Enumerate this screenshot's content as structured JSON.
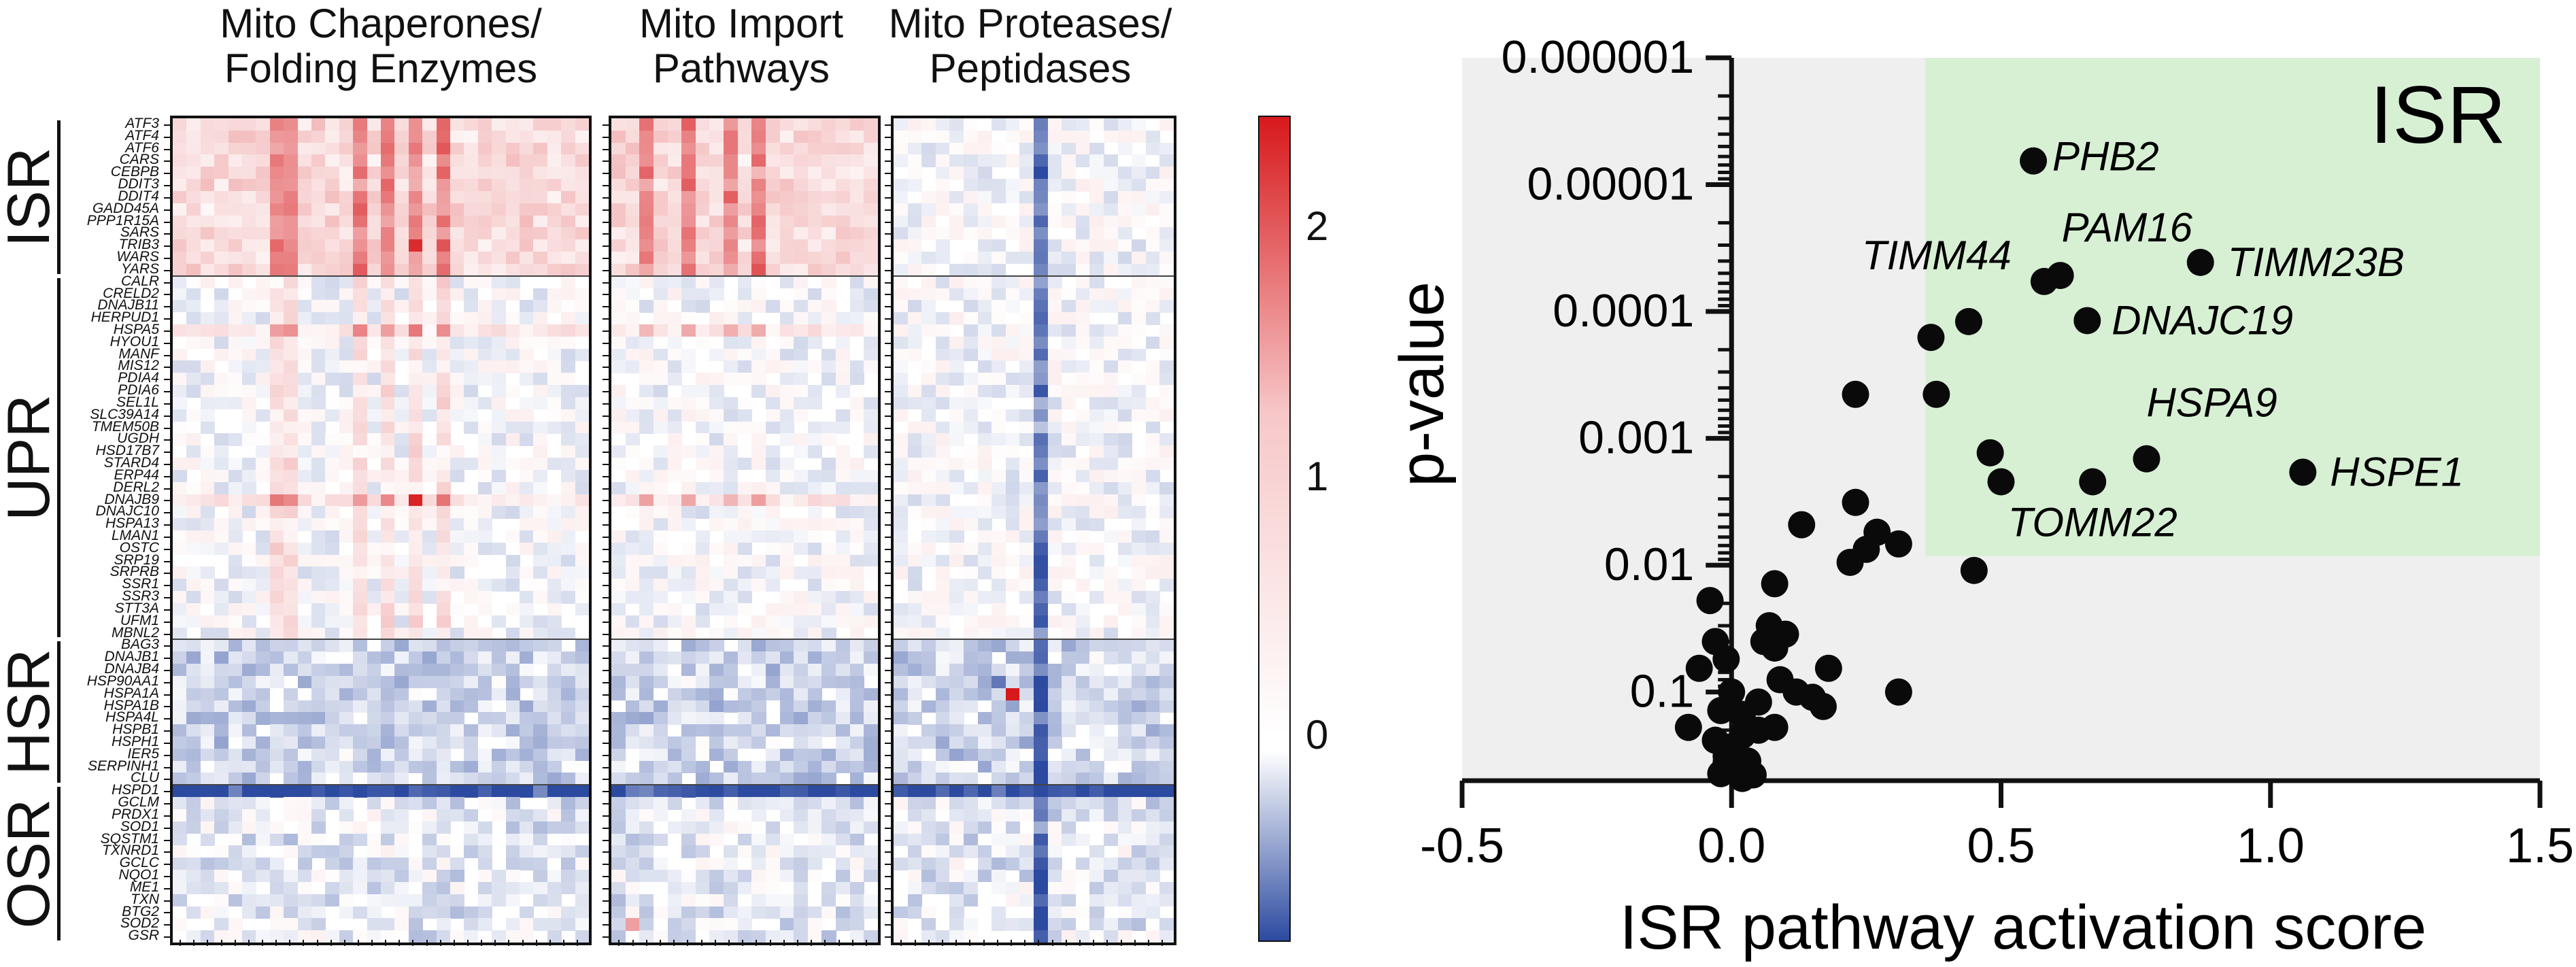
{
  "heatmap": {
    "panel_titles": [
      "Mito Chaperones/\nFolding Enzymes",
      "Mito Import\nPathways",
      "Mito Proteases/\nPeptidases"
    ],
    "groups": [
      {
        "name": "ISR",
        "genes": [
          "ATF3",
          "ATF4",
          "ATF6",
          "CARS",
          "CEBPB",
          "DDIT3",
          "DDIT4",
          "GADD45A",
          "PPP1R15A",
          "SARS",
          "TRIB3",
          "WARS",
          "YARS"
        ]
      },
      {
        "name": "UPR",
        "genes": [
          "CALR",
          "CRELD2",
          "DNAJB11",
          "HERPUD1",
          "HSPA5",
          "HYOU1",
          "MANF",
          "MIS12",
          "PDIA4",
          "PDIA6",
          "SEL1L",
          "SLC39A14",
          "TMEM50B",
          "UGDH",
          "HSD17B7",
          "STARD4",
          "ERP44",
          "DERL2",
          "DNAJB9",
          "DNAJC10",
          "HSPA13",
          "LMAN1",
          "OSTC",
          "SRP19",
          "SRPRB",
          "SSR1",
          "SSR3",
          "STT3A",
          "UFM1",
          "MBNL2"
        ]
      },
      {
        "name": "HSR",
        "genes": [
          "BAG3",
          "DNAJB1",
          "DNAJB4",
          "HSP90AA1",
          "HSPA1A",
          "HSPA1B",
          "HSPA4L",
          "HSPB1",
          "HSPH1",
          "IER5",
          "SERPINH1",
          "CLU"
        ]
      },
      {
        "name": "OSR",
        "genes": [
          "HSPD1",
          "GCLM",
          "PRDX1",
          "SOD1",
          "SQSTM1",
          "TXNRD1",
          "GCLC",
          "NQO1",
          "ME1",
          "TXN",
          "BTG2",
          "SOD2",
          "GSR"
        ]
      }
    ],
    "colorbar": {
      "ticks": [
        "2",
        "1",
        "0"
      ],
      "max": 2.4,
      "min": -0.8,
      "colors": {
        "high": "#d7191c",
        "mid": "#ffffff",
        "low": "#2c4aa0"
      }
    }
  },
  "chart_data": {
    "type": "scatter",
    "title": "",
    "xlabel": "ISR pathway activation score",
    "ylabel": "p-value",
    "xlim": [
      -0.5,
      1.5
    ],
    "xticks": [
      "-0.5",
      "0.0",
      "0.5",
      "1.0",
      "1.5"
    ],
    "y_scale": "log",
    "ylim": [
      1e-06,
      0.5
    ],
    "yticks": [
      "0.000001",
      "0.00001",
      "0.0001",
      "0.001",
      "0.01",
      "0.1"
    ],
    "highlight_label": "ISR",
    "colors": {
      "background": "#efefef",
      "highlight": "#d7f0d4",
      "point": "#0a0a0a"
    },
    "labeled_points": [
      {
        "label": "PHB2",
        "x": 0.56,
        "y": 6.5e-06
      },
      {
        "label": "PAM16",
        "x": 0.61,
        "y": 5.2e-05
      },
      {
        "label": "TIMM44",
        "x": 0.58,
        "y": 5.8e-05
      },
      {
        "label": "TIMM23B",
        "x": 0.87,
        "y": 4.1e-05
      },
      {
        "label": "DNAJC19",
        "x": 0.66,
        "y": 0.000118
      },
      {
        "label": "HSPA9",
        "x": 0.77,
        "y": 0.00145
      },
      {
        "label": "HSPE1",
        "x": 1.06,
        "y": 0.00185
      },
      {
        "label": "TOMM22",
        "x": 0.67,
        "y": 0.0022
      }
    ],
    "points": [
      {
        "x": 0.37,
        "y": 0.00016
      },
      {
        "x": 0.44,
        "y": 0.00012
      },
      {
        "x": 0.38,
        "y": 0.00045
      },
      {
        "x": 0.23,
        "y": 0.00045
      },
      {
        "x": 0.48,
        "y": 0.0013
      },
      {
        "x": 0.5,
        "y": 0.0022
      },
      {
        "x": 0.23,
        "y": 0.0032
      },
      {
        "x": 0.13,
        "y": 0.0048
      },
      {
        "x": 0.27,
        "y": 0.0055
      },
      {
        "x": 0.31,
        "y": 0.0068
      },
      {
        "x": 0.25,
        "y": 0.0075
      },
      {
        "x": 0.45,
        "y": 0.011
      },
      {
        "x": 0.22,
        "y": 0.0095
      },
      {
        "x": 0.08,
        "y": 0.014
      },
      {
        "x": -0.04,
        "y": 0.019
      },
      {
        "x": 0.07,
        "y": 0.03
      },
      {
        "x": 0.1,
        "y": 0.035
      },
      {
        "x": 0.08,
        "y": 0.045
      },
      {
        "x": 0.06,
        "y": 0.04
      },
      {
        "x": -0.03,
        "y": 0.04
      },
      {
        "x": -0.01,
        "y": 0.055
      },
      {
        "x": 0.18,
        "y": 0.065
      },
      {
        "x": -0.06,
        "y": 0.065
      },
      {
        "x": 0.31,
        "y": 0.1
      },
      {
        "x": 0.0,
        "y": 0.1
      },
      {
        "x": 0.09,
        "y": 0.08
      },
      {
        "x": 0.15,
        "y": 0.11
      },
      {
        "x": 0.12,
        "y": 0.1
      },
      {
        "x": 0.05,
        "y": 0.12
      },
      {
        "x": 0.02,
        "y": 0.15
      },
      {
        "x": -0.02,
        "y": 0.14
      },
      {
        "x": 0.17,
        "y": 0.13
      },
      {
        "x": 0.08,
        "y": 0.19
      },
      {
        "x": 0.05,
        "y": 0.2
      },
      {
        "x": -0.08,
        "y": 0.19
      },
      {
        "x": 0.02,
        "y": 0.22
      },
      {
        "x": -0.03,
        "y": 0.24
      },
      {
        "x": 0.0,
        "y": 0.27
      },
      {
        "x": -0.01,
        "y": 0.32
      },
      {
        "x": 0.03,
        "y": 0.35
      },
      {
        "x": 0.01,
        "y": 0.4
      },
      {
        "x": -0.02,
        "y": 0.44
      },
      {
        "x": 0.02,
        "y": 0.48
      },
      {
        "x": 0.04,
        "y": 0.45
      },
      {
        "x": -0.01,
        "y": 0.36
      },
      {
        "x": 0.0,
        "y": 0.3
      }
    ]
  }
}
